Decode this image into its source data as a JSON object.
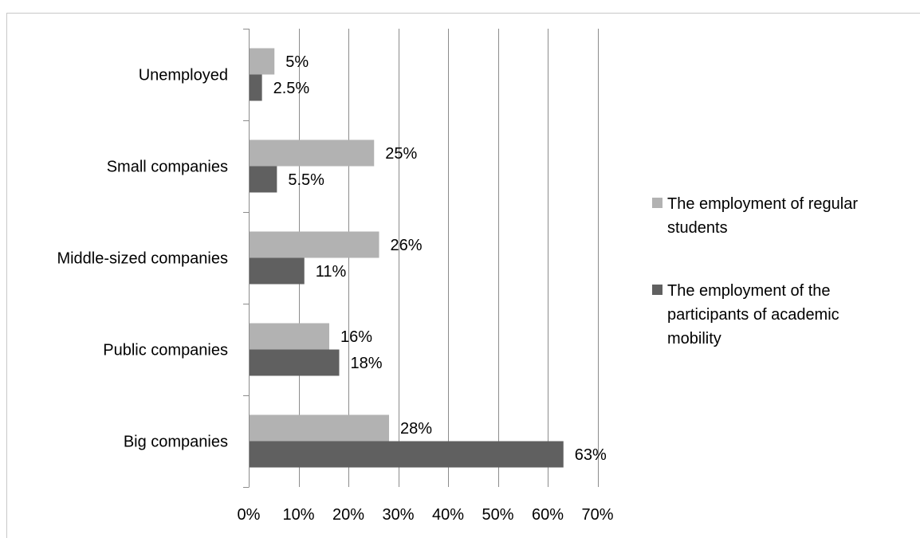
{
  "chart_data": {
    "type": "bar",
    "orientation": "horizontal",
    "categories": [
      "Unemployed",
      "Small companies",
      "Middle-sized companies",
      "Public companies",
      "Big companies"
    ],
    "series": [
      {
        "name": "The employment of regular students",
        "color": "#b2b2b2",
        "values": [
          5,
          25,
          26,
          16,
          28
        ],
        "labels": [
          "5%",
          "25%",
          "26%",
          "16%",
          "28%"
        ]
      },
      {
        "name": "The employment of the participants of academic mobility",
        "color": "#606060",
        "values": [
          2.5,
          5.5,
          11,
          18,
          63
        ],
        "labels": [
          "2.5%",
          "5.5%",
          "11%",
          "18%",
          "63%"
        ]
      }
    ],
    "xlim": [
      0,
      70
    ],
    "ticks": [
      0,
      10,
      20,
      30,
      40,
      50,
      60,
      70
    ],
    "tick_labels": [
      "0%",
      "10%",
      "20%",
      "30%",
      "40%",
      "50%",
      "60%",
      "70%"
    ],
    "grid": true,
    "legend_position": "right",
    "legend_lines": [
      [
        "The employment of regular",
        "students"
      ],
      [
        "The employment of the",
        "participants of academic",
        "mobility"
      ]
    ]
  }
}
